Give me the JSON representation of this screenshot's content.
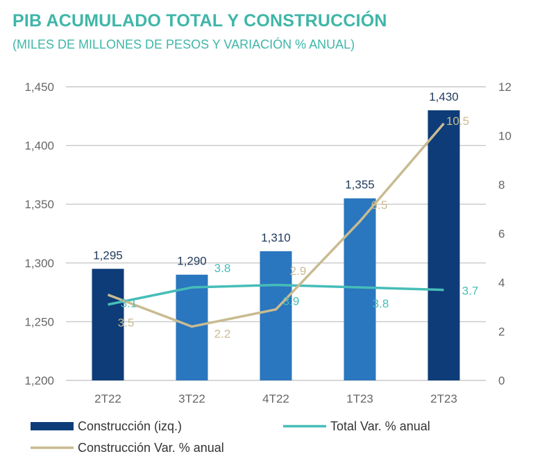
{
  "title": "PIB ACUMULADO TOTAL Y CONSTRUCCIÓN",
  "subtitle": "(MILES DE MILLONES DE PESOS Y VARIACIÓN % ANUAL)",
  "colors": {
    "title": "#3fb6a8",
    "bar_dark": "#0d3c78",
    "bar_mid": "#2a76bf",
    "total_line": "#46bdb8",
    "constr_line": "#c9bb90",
    "grid": "#c8c8c8"
  },
  "chart_data": {
    "type": "bar",
    "categories": [
      "2T22",
      "3T22",
      "4T22",
      "1T23",
      "2T23"
    ],
    "series": [
      {
        "name": "Construcción (izq.)",
        "type": "bar",
        "axis": "left",
        "values": [
          1295,
          1290,
          1310,
          1355,
          1430
        ],
        "labels": [
          "1,295",
          "1,290",
          "1,310",
          "1,355",
          "1,430"
        ]
      },
      {
        "name": "Total Var. % anual",
        "type": "line",
        "axis": "right",
        "values": [
          3.1,
          3.8,
          3.9,
          3.8,
          3.7
        ],
        "labels": [
          "3.1",
          "3.8",
          "3.9",
          "3.8",
          "3.7"
        ]
      },
      {
        "name": "Construcción Var. % anual",
        "type": "line",
        "axis": "right",
        "values": [
          3.5,
          2.2,
          2.9,
          6.5,
          10.5
        ],
        "labels": [
          "3.5",
          "2.2",
          "2.9",
          "6.5",
          "10.5"
        ]
      }
    ],
    "left_axis": {
      "ylim": [
        1200,
        1450
      ],
      "ticks": [
        "1,200",
        "1,250",
        "1,300",
        "1,350",
        "1,400",
        "1,450"
      ],
      "tick_values": [
        1200,
        1250,
        1300,
        1350,
        1400,
        1450
      ]
    },
    "right_axis": {
      "ylim": [
        0,
        12
      ],
      "ticks": [
        "0",
        "2",
        "4",
        "6",
        "8",
        "10",
        "12"
      ],
      "tick_values": [
        0,
        2,
        4,
        6,
        8,
        10,
        12
      ]
    },
    "legend": [
      "Construcción (izq.)",
      "Total Var. % anual",
      "Construcción Var. % anual"
    ]
  }
}
